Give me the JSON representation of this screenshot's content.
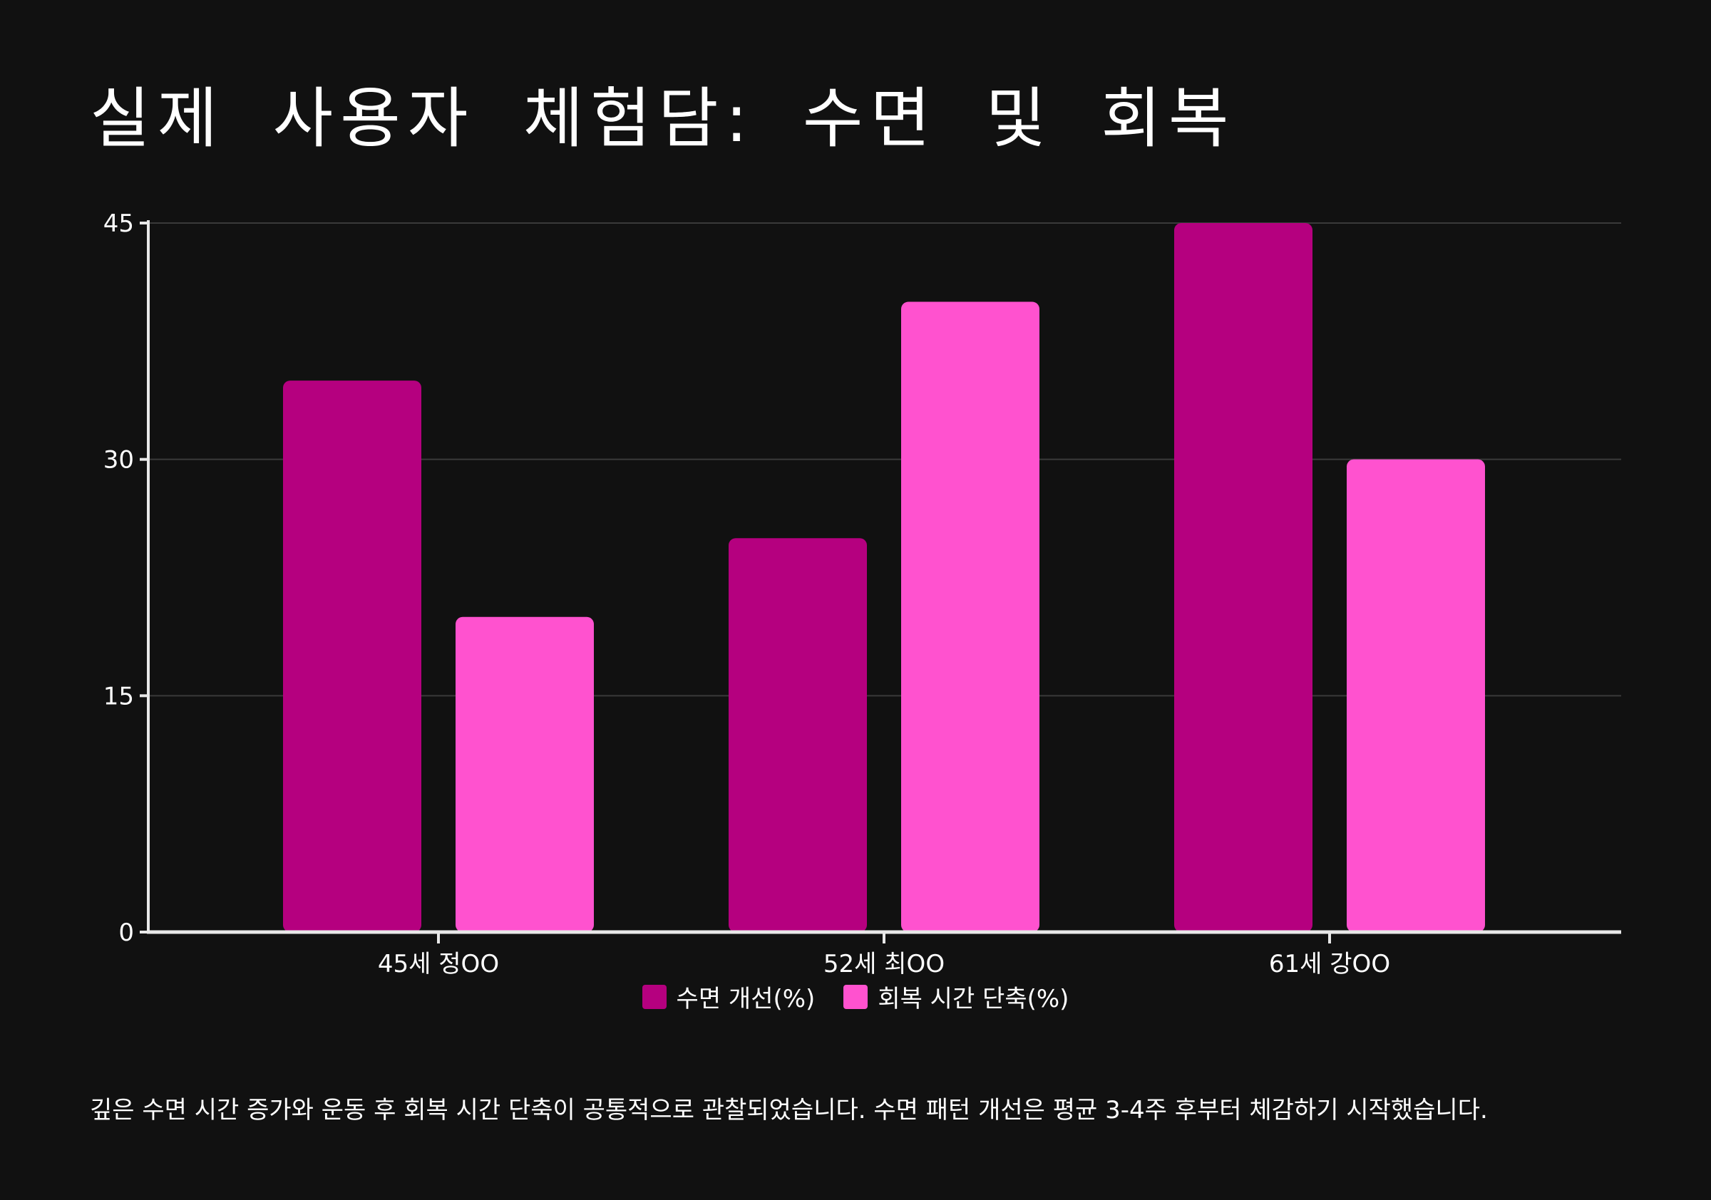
{
  "chart_data": {
    "type": "bar",
    "title": "실제 사용자 체험담: 수면 및 회복",
    "categories": [
      "45세 정OO",
      "52세 최OO",
      "61세 강OO"
    ],
    "series": [
      {
        "name": "수면 개선(%)",
        "values": [
          35,
          25,
          45
        ],
        "color": "#b5007f"
      },
      {
        "name": "회복 시간 단축(%)",
        "values": [
          20,
          40,
          30
        ],
        "color": "#ff52cf"
      }
    ],
    "xlabel": "",
    "ylabel": "",
    "ylim": [
      0,
      45
    ],
    "yticks": [
      "0",
      "15",
      "30",
      "45"
    ],
    "grid": true,
    "legend_position": "bottom-center"
  },
  "footnote": "깊은 수면 시간 증가와 운동 후 회복 시간 단축이 공통적으로 관찰되었습니다. 수면 패턴 개선은 평균 3-4주 후부터 체감하기 시작했습니다.",
  "colors": {
    "background": "#111111",
    "axis": "#e8e8e8",
    "grid": "#3a3a3a",
    "text": "#ffffff"
  }
}
